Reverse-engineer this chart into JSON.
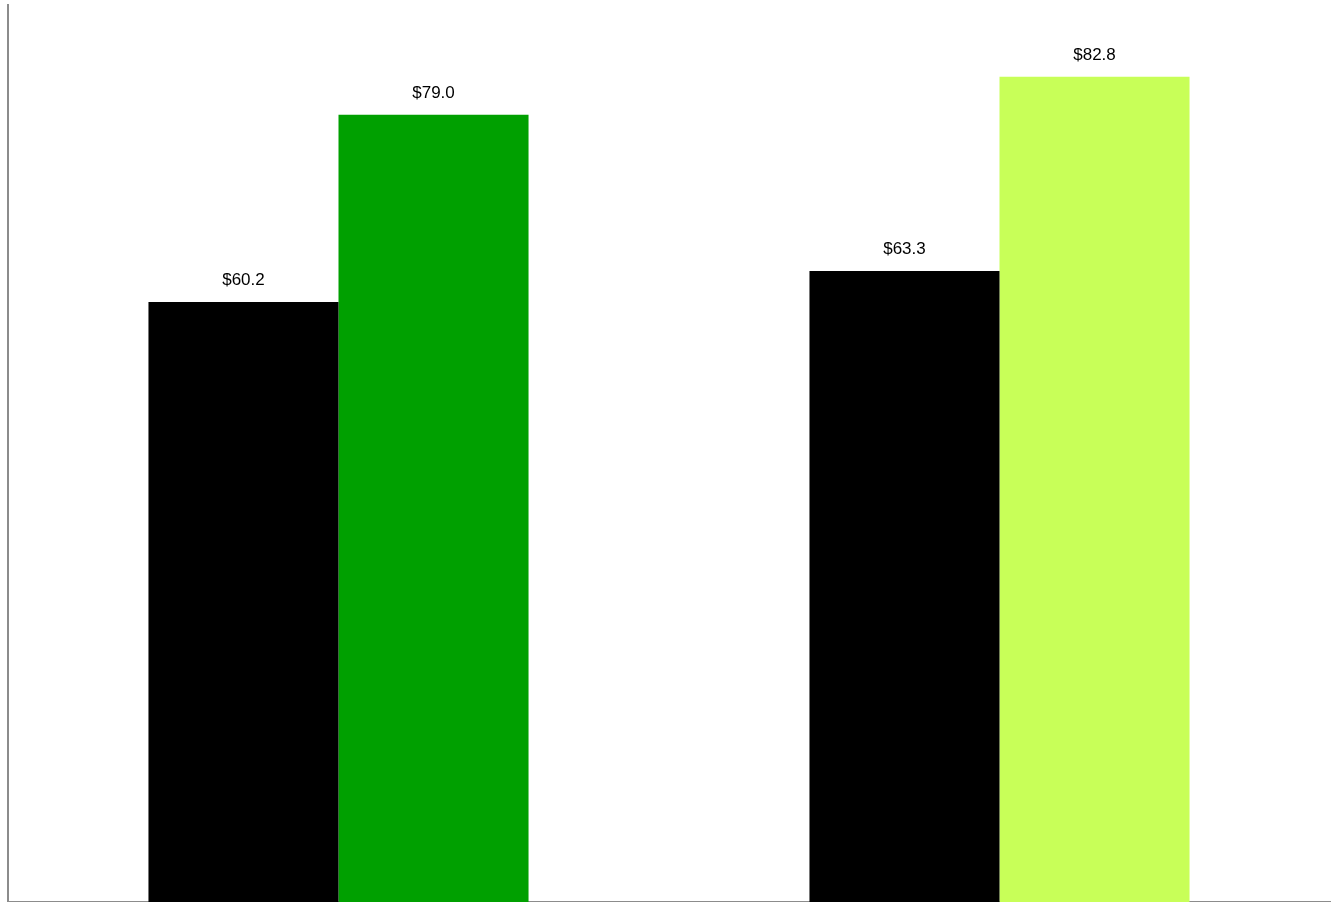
{
  "chart_data": {
    "type": "bar",
    "categories": [
      null,
      null
    ],
    "series": [
      {
        "color": "#000000",
        "values": [
          60.2,
          63.3
        ],
        "value_labels": [
          "$60.2",
          "$63.3"
        ]
      },
      {
        "colors": [
          "#00a000",
          "#c8ff58"
        ],
        "values": [
          79.0,
          82.8
        ],
        "value_labels": [
          "$79.0",
          "$82.8"
        ]
      }
    ],
    "ylim": [
      0,
      90
    ],
    "tick_labels": false
  }
}
